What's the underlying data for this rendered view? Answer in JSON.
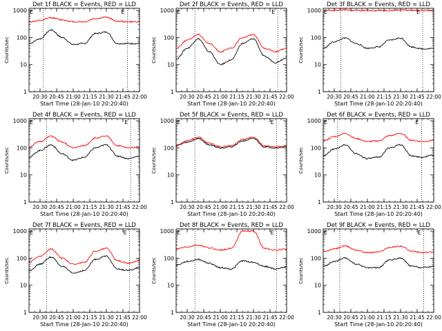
{
  "x_ticks": [
    "20:30",
    "20:45",
    "21:00",
    "21:15",
    "21:30",
    "21:45",
    "22:00"
  ],
  "y_ticks": [
    "1",
    "10",
    "100",
    "1000"
  ],
  "colors": {
    "events": "#000000",
    "lld": "#ff0000",
    "frame": "#000000"
  },
  "chart_data": [
    {
      "type": "line",
      "title": "Det 1f BLACK = Events, RED = LLD",
      "xlabel": "Start Time (28-Jan-10 20:20:40)",
      "ylabel": "Counts/sec",
      "xlim": [
        "20:20",
        "22:00"
      ],
      "ylim": [
        1,
        1200
      ],
      "yscale": "log",
      "markers": [
        "20:33",
        "21:49"
      ],
      "marker_labels": [
        "E",
        "E"
      ],
      "x": [
        "20:20",
        "20:30",
        "20:40",
        "20:50",
        "21:00",
        "21:10",
        "21:20",
        "21:30",
        "21:40",
        "21:50",
        "22:00"
      ],
      "series": [
        {
          "name": "BLACK = Events",
          "values": [
            60,
            90,
            190,
            100,
            55,
            60,
            140,
            160,
            60,
            60,
            60
          ]
        },
        {
          "name": "RED = LLD",
          "values": [
            380,
            420,
            540,
            450,
            380,
            380,
            500,
            560,
            400,
            380,
            380
          ]
        }
      ]
    },
    {
      "type": "line",
      "title": "Det 2f BLACK = Events, RED = LLD",
      "xlabel": "Start Time (28-Jan-10 20:20:40)",
      "ylabel": "Counts/sec",
      "xlim": [
        "20:20",
        "22:00"
      ],
      "ylim": [
        1,
        1200
      ],
      "yscale": "log",
      "markers": [
        "20:37",
        "21:52"
      ],
      "marker_labels": [
        "E",
        "E"
      ],
      "x": [
        "20:20",
        "20:30",
        "20:40",
        "20:50",
        "21:00",
        "21:10",
        "21:20",
        "21:30",
        "21:40",
        "21:50",
        "22:00"
      ],
      "series": [
        {
          "name": "BLACK = Events",
          "values": [
            16,
            40,
            90,
            30,
            10,
            15,
            60,
            90,
            20,
            12,
            18
          ]
        },
        {
          "name": "RED = LLD",
          "values": [
            40,
            80,
            130,
            60,
            30,
            40,
            100,
            130,
            40,
            30,
            40
          ]
        }
      ]
    },
    {
      "type": "line",
      "title": "Det 3f BLACK = Events, RED = LLD",
      "xlabel": "Start Time (28-Jan-10 20:20:40)",
      "ylabel": "Counts/sec",
      "xlim": [
        "20:20",
        "22:00"
      ],
      "ylim": [
        1,
        1200
      ],
      "yscale": "log",
      "markers": [
        "20:36",
        "21:50"
      ],
      "marker_labels": [
        "E",
        "E"
      ],
      "x": [
        "20:20",
        "20:30",
        "20:40",
        "20:50",
        "21:00",
        "21:10",
        "21:20",
        "21:30",
        "21:40",
        "21:50",
        "22:00"
      ],
      "series": [
        {
          "name": "BLACK = Events",
          "values": [
            40,
            70,
            95,
            60,
            40,
            45,
            80,
            95,
            45,
            38,
            40
          ]
        },
        {
          "name": "RED = LLD",
          "values": [
            1000,
            1000,
            1050,
            1000,
            1000,
            1000,
            1000,
            1050,
            1000,
            1000,
            1000
          ]
        }
      ]
    },
    {
      "type": "line",
      "title": "Det 4f BLACK = Events, RED = LLD",
      "xlabel": "Start Time (28-Jan-10 20:20:40)",
      "ylabel": "Counts/sec",
      "xlim": [
        "20:20",
        "22:00"
      ],
      "ylim": [
        1,
        1200
      ],
      "yscale": "log",
      "markers": [
        "20:36",
        "21:52"
      ],
      "marker_labels": [
        "E",
        "E"
      ],
      "x": [
        "20:20",
        "20:30",
        "20:40",
        "20:50",
        "21:00",
        "21:10",
        "21:20",
        "21:30",
        "21:40",
        "21:50",
        "22:00"
      ],
      "series": [
        {
          "name": "BLACK = Events",
          "values": [
            45,
            80,
            130,
            60,
            35,
            45,
            100,
            130,
            50,
            40,
            50
          ]
        },
        {
          "name": "RED = LLD",
          "values": [
            110,
            170,
            270,
            160,
            100,
            120,
            230,
            270,
            120,
            100,
            110
          ]
        }
      ]
    },
    {
      "type": "line",
      "title": "Det 5f BLACK = Events, RED = LLD",
      "xlabel": "Start Time (28-Jan-10 20:20:40)",
      "ylabel": "Counts/sec",
      "xlim": [
        "20:20",
        "22:00"
      ],
      "ylim": [
        1,
        1200
      ],
      "yscale": "log",
      "markers": [
        "20:37",
        "21:51"
      ],
      "marker_labels": [
        "E",
        "E"
      ],
      "x": [
        "20:20",
        "20:30",
        "20:40",
        "20:50",
        "21:00",
        "21:10",
        "21:20",
        "21:30",
        "21:40",
        "21:50",
        "22:00"
      ],
      "series": [
        {
          "name": "BLACK = Events",
          "values": [
            120,
            160,
            220,
            130,
            100,
            110,
            180,
            220,
            110,
            100,
            110
          ]
        },
        {
          "name": "RED = LLD",
          "values": [
            130,
            180,
            250,
            150,
            110,
            120,
            200,
            250,
            120,
            110,
            120
          ]
        }
      ]
    },
    {
      "type": "line",
      "title": "Det 6f BLACK = Events, RED = LLD",
      "xlabel": "Start Time (28-Jan-10 20:20:40)",
      "ylabel": "Counts/sec",
      "xlim": [
        "20:20",
        "22:00"
      ],
      "ylim": [
        1,
        1200
      ],
      "yscale": "log",
      "markers": [
        "20:33",
        "21:49"
      ],
      "marker_labels": [
        "E",
        "E"
      ],
      "x": [
        "20:20",
        "20:30",
        "20:40",
        "20:50",
        "21:00",
        "21:10",
        "21:20",
        "21:30",
        "21:40",
        "21:50",
        "22:00"
      ],
      "series": [
        {
          "name": "BLACK = Events",
          "values": [
            50,
            90,
            130,
            60,
            40,
            45,
            100,
            130,
            50,
            45,
            55
          ]
        },
        {
          "name": "RED = LLD",
          "values": [
            180,
            260,
            340,
            220,
            170,
            180,
            280,
            340,
            190,
            170,
            190
          ]
        }
      ]
    },
    {
      "type": "line",
      "title": "Det 7f BLACK = Events, RED = LLD",
      "xlabel": "Start Time (28-Jan-10 20:20:40)",
      "ylabel": "Counts/sec",
      "xlim": [
        "20:20",
        "22:00"
      ],
      "ylim": [
        1,
        1200
      ],
      "yscale": "log",
      "markers": [
        "20:36",
        "21:51"
      ],
      "marker_labels": [
        "E",
        "E"
      ],
      "x": [
        "20:20",
        "20:30",
        "20:40",
        "20:50",
        "21:00",
        "21:10",
        "21:20",
        "21:30",
        "21:40",
        "21:50",
        "22:00"
      ],
      "series": [
        {
          "name": "BLACK = Events",
          "values": [
            35,
            60,
            110,
            50,
            28,
            35,
            90,
            120,
            40,
            35,
            45
          ]
        },
        {
          "name": "RED = LLD",
          "values": [
            70,
            120,
            220,
            100,
            60,
            70,
            180,
            230,
            80,
            65,
            80
          ]
        }
      ]
    },
    {
      "type": "line",
      "title": "Det 8f BLACK = Events, RED = LLD",
      "xlabel": "Start Time (28-Jan-10 20:20:40)",
      "ylabel": "Counts/sec",
      "xlim": [
        "20:20",
        "22:00"
      ],
      "ylim": [
        1,
        1200
      ],
      "yscale": "log",
      "markers": [
        "20:37",
        "21:51"
      ],
      "marker_labels": [
        "E",
        "E"
      ],
      "x": [
        "20:20",
        "20:30",
        "20:40",
        "20:50",
        "21:00",
        "21:10",
        "21:20",
        "21:30",
        "21:40",
        "21:50",
        "22:00"
      ],
      "series": [
        {
          "name": "BLACK = Events",
          "values": [
            55,
            75,
            90,
            65,
            45,
            40,
            80,
            70,
            50,
            40,
            48
          ]
        },
        {
          "name": "RED = LLD",
          "values": [
            220,
            260,
            300,
            240,
            200,
            230,
            1000,
            1000,
            230,
            200,
            220
          ]
        }
      ]
    },
    {
      "type": "line",
      "title": "Det 9f BLACK = Events, RED = LLD",
      "xlabel": "Start Time (28-Jan-10 20:20:40)",
      "ylabel": "Counts/sec",
      "xlim": [
        "20:20",
        "22:00"
      ],
      "ylim": [
        1,
        1200
      ],
      "yscale": "log",
      "markers": [
        "20:35",
        "21:51"
      ],
      "marker_labels": [
        "E",
        "E"
      ],
      "x": [
        "20:20",
        "20:30",
        "20:40",
        "20:50",
        "21:00",
        "21:10",
        "21:20",
        "21:30",
        "21:40",
        "21:50",
        "22:00"
      ],
      "series": [
        {
          "name": "BLACK = Events",
          "values": [
            50,
            75,
            100,
            60,
            45,
            45,
            85,
            100,
            50,
            45,
            50
          ]
        },
        {
          "name": "RED = LLD",
          "values": [
            170,
            220,
            280,
            200,
            160,
            170,
            250,
            280,
            180,
            160,
            170
          ]
        }
      ]
    }
  ]
}
